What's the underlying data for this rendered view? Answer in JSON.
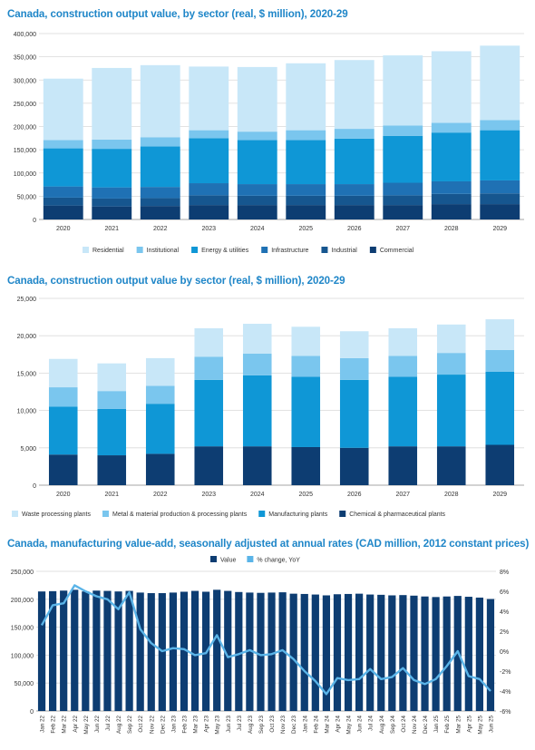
{
  "chart_data": [
    {
      "type": "bar",
      "stacked": true,
      "title": "Canada, construction output value, by sector (real, $ million), 2020-29",
      "categories": [
        "2020",
        "2021",
        "2022",
        "2023",
        "2024",
        "2025",
        "2026",
        "2027",
        "2028",
        "2029"
      ],
      "ylim": [
        0,
        400000
      ],
      "yticks": [
        "0",
        "50,000",
        "100,000",
        "150,000",
        "200,000",
        "250,000",
        "300,000",
        "350,000",
        "400,000"
      ],
      "grid": true,
      "legend_position": "bottom",
      "series": [
        {
          "name": "Commercial",
          "color": "#0d3d72",
          "values": [
            30000,
            28000,
            29000,
            31000,
            31000,
            31000,
            31000,
            31000,
            33000,
            33000
          ]
        },
        {
          "name": "Industrial",
          "color": "#16568f",
          "values": [
            17000,
            17000,
            17000,
            21000,
            20000,
            20000,
            20000,
            21000,
            22000,
            23000
          ]
        },
        {
          "name": "Infrastructure",
          "color": "#1f71b4",
          "values": [
            24000,
            24000,
            24000,
            26000,
            25000,
            25000,
            25000,
            27000,
            27000,
            28000
          ]
        },
        {
          "name": "Energy & utilities",
          "color": "#0f97d6",
          "values": [
            82000,
            83000,
            87000,
            97000,
            95000,
            95000,
            98000,
            101000,
            105000,
            108000
          ]
        },
        {
          "name": "Institutional",
          "color": "#7ac6ee",
          "values": [
            18000,
            20000,
            20000,
            17000,
            18000,
            21000,
            21000,
            22000,
            21000,
            22000
          ]
        },
        {
          "name": "Residential",
          "color": "#c8e7f8",
          "values": [
            132000,
            154000,
            155000,
            137000,
            139000,
            144000,
            148000,
            151000,
            154000,
            160000
          ]
        }
      ],
      "legend_order": [
        "Residential",
        "Institutional",
        "Energy & utilities",
        "Infrastructure",
        "Industrial",
        "Commercial"
      ]
    },
    {
      "type": "bar",
      "stacked": true,
      "title": "Canada, construction output value by sector (real, $ million), 2020-29",
      "categories": [
        "2020",
        "2021",
        "2022",
        "2023",
        "2024",
        "2025",
        "2026",
        "2027",
        "2028",
        "2029"
      ],
      "ylim": [
        0,
        25000
      ],
      "yticks": [
        "0",
        "5,000",
        "10,000",
        "15,000",
        "20,000",
        "25,000"
      ],
      "grid": true,
      "legend_position": "bottom",
      "series": [
        {
          "name": "Chemical & pharmaceutical plants",
          "color": "#0d3d72",
          "values": [
            4100,
            4000,
            4200,
            5200,
            5200,
            5100,
            5000,
            5200,
            5200,
            5400
          ]
        },
        {
          "name": "Manufacturing plants",
          "color": "#0f97d6",
          "values": [
            6400,
            6200,
            6700,
            8900,
            9500,
            9400,
            9100,
            9300,
            9600,
            9800
          ]
        },
        {
          "name": "Metal & material production & processing plants",
          "color": "#7ac6ee",
          "values": [
            2600,
            2400,
            2400,
            3100,
            2900,
            2800,
            2900,
            2800,
            2900,
            2900
          ]
        },
        {
          "name": "Waste processing plants",
          "color": "#c8e7f8",
          "values": [
            3800,
            3700,
            3700,
            3800,
            4000,
            3900,
            3600,
            3700,
            3800,
            4100
          ]
        }
      ],
      "legend_order": [
        "Waste processing plants",
        "Metal & material production & processing plants",
        "Manufacturing plants",
        "Chemical & pharmaceutical plants"
      ]
    },
    {
      "type": "bar+line",
      "title": "Canada, manufacturing value-add, seasonally adjusted at annual rates (CAD million, 2012 constant prices)",
      "categories": [
        "Jan 22",
        "Feb 22",
        "Mar 22",
        "Apr 22",
        "May 22",
        "Jun 22",
        "Jul 22",
        "Aug 22",
        "Sep 22",
        "Oct 22",
        "Nov 22",
        "Dec 22",
        "Jan 23",
        "Feb 23",
        "Mar 23",
        "Apr 23",
        "May 23",
        "Jun 23",
        "Jul 23",
        "Aug 23",
        "Sep 23",
        "Oct 23",
        "Nov 23",
        "Dec 23",
        "Jan 24",
        "Feb 24",
        "Mar 24",
        "Apr 24",
        "May 24",
        "Jun 24",
        "Jul 24",
        "Aug 24",
        "Sep 24",
        "Oct 24",
        "Nov 24",
        "Dec 24",
        "Jan 25",
        "Feb 25",
        "Mar 25",
        "Apr 25",
        "May 25",
        "Jun 25"
      ],
      "ylim": [
        0,
        250000
      ],
      "yticks": [
        "0",
        "50,000",
        "100,000",
        "150,000",
        "200,000",
        "250,000"
      ],
      "y2lim": [
        -6,
        8
      ],
      "y2ticks": [
        "-6%",
        "-4%",
        "-2%",
        "0%",
        "2%",
        "4%",
        "6%",
        "8%"
      ],
      "grid": true,
      "legend_position": "top",
      "series": [
        {
          "name": "Value",
          "kind": "bar",
          "axis": "left",
          "color": "#0d3d72",
          "values": [
            214000,
            214500,
            215500,
            217000,
            214000,
            215500,
            215000,
            214000,
            215000,
            212000,
            211000,
            211000,
            212000,
            213500,
            215000,
            213500,
            217000,
            215000,
            213000,
            212000,
            211500,
            212000,
            212500,
            210000,
            209500,
            208500,
            207000,
            209000,
            209500,
            210000,
            208500,
            208000,
            207000,
            207500,
            206500,
            205000,
            204000,
            205000,
            206000,
            204500,
            203000,
            200500
          ]
        },
        {
          "name": "% change, YoY",
          "kind": "line",
          "axis": "right",
          "color": "#5ab4e8",
          "values": [
            2.6,
            4.6,
            4.8,
            6.6,
            6.0,
            5.5,
            5.2,
            4.2,
            5.9,
            2.2,
            0.8,
            0.0,
            0.3,
            0.2,
            -0.4,
            -0.2,
            1.6,
            -0.6,
            -0.3,
            0.1,
            -0.4,
            -0.3,
            0.1,
            -0.8,
            -2.0,
            -3.0,
            -4.3,
            -2.7,
            -2.9,
            -2.8,
            -1.8,
            -2.8,
            -2.6,
            -1.7,
            -2.9,
            -3.3,
            -2.8,
            -1.5,
            0.0,
            -2.5,
            -2.8,
            -4.0
          ]
        }
      ]
    }
  ]
}
